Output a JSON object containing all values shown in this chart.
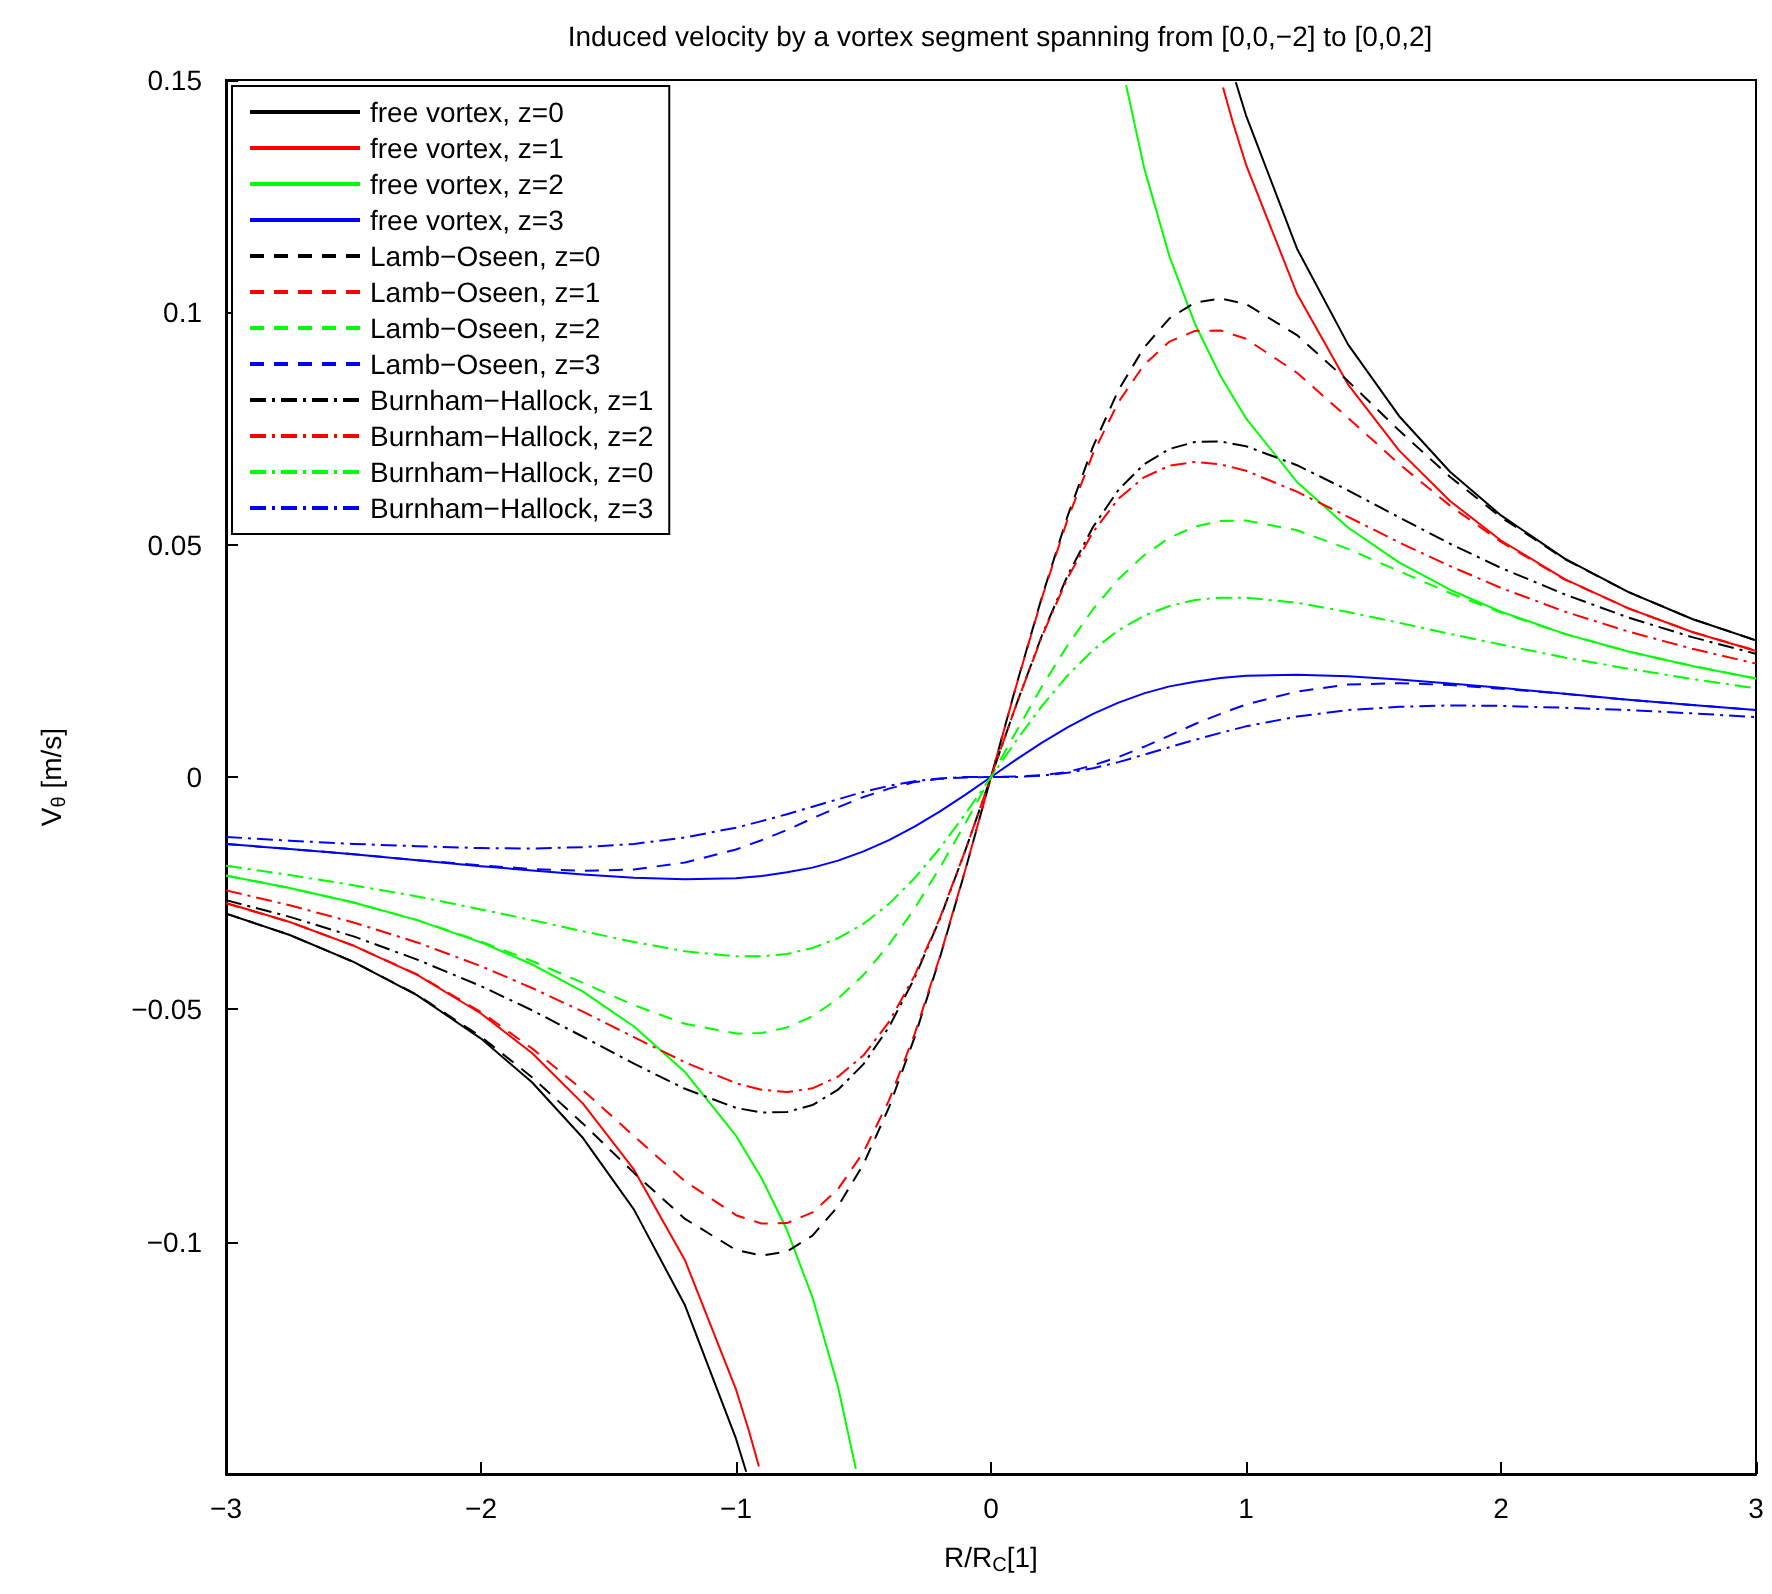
{
  "chart_data": {
    "type": "line",
    "title": "Induced velocity by a vortex segment spanning from [0,0,−2] to [0,0,2]",
    "xlabel": "R/R$_{C}$[1]",
    "ylabel": "V$_{θ}$ [m/s]",
    "xlim": [
      -3,
      3
    ],
    "xticks": [
      -3,
      -2,
      -1,
      0,
      1,
      2,
      3
    ],
    "ylim": [
      -0.15,
      0.15
    ],
    "yticks": [
      -0.1,
      -0.05,
      0,
      0.05,
      0.1,
      0.15
    ],
    "grid": false,
    "legend": "top left",
    "marker": "none",
    "x": [
      -3,
      -2.75,
      -2.5,
      -2.25,
      -2,
      -1.8,
      -1.6,
      -1.4,
      -1.2,
      -1,
      -0.9,
      -0.8,
      -0.7,
      -0.6,
      -0.5,
      -0.4,
      -0.3,
      -0.2,
      -0.1,
      0,
      0.1,
      0.2,
      0.3,
      0.4,
      0.5,
      0.6,
      0.7,
      0.8,
      0.9,
      1,
      1.2,
      1.4,
      1.6,
      1.8,
      2,
      2.25,
      2.5,
      2.75,
      3
    ],
    "series": [
      {
        "name": "free vortex, z=0",
        "color": "#000000",
        "line_style": "solid",
        "x": [
          -3,
          -2.75,
          -2.5,
          -2.25,
          -2,
          -1.8,
          -1.6,
          -1.4,
          -1.2,
          -1,
          -0.96,
          0,
          0.96,
          1,
          1.2,
          1.4,
          1.6,
          1.8,
          2,
          2.25,
          2.5,
          2.75,
          3
        ],
        "values": [
          -0.0294,
          -0.034,
          -0.0398,
          -0.047,
          -0.0563,
          -0.0657,
          -0.0777,
          -0.0931,
          -0.1137,
          -0.1424,
          -0.1495,
          null,
          0.1495,
          0.1424,
          0.1137,
          0.0931,
          0.0777,
          0.0657,
          0.0563,
          0.047,
          0.0398,
          0.034,
          0.0294
        ]
      },
      {
        "name": "free vortex, z=1",
        "color": "#ff0000",
        "line_style": "solid",
        "x": [
          -3,
          -2.75,
          -2.5,
          -2.25,
          -2,
          -1.8,
          -1.6,
          -1.4,
          -1.2,
          -1,
          -0.95,
          -0.91,
          0,
          0.91,
          0.95,
          1,
          1.2,
          1.4,
          1.6,
          1.8,
          2,
          2.25,
          2.5,
          2.75,
          3
        ],
        "values": [
          -0.0271,
          -0.0312,
          -0.0363,
          -0.0426,
          -0.0509,
          -0.0594,
          -0.0703,
          -0.0845,
          -0.104,
          -0.1318,
          -0.1406,
          -0.1484,
          null,
          0.1484,
          0.1406,
          0.1318,
          0.104,
          0.0845,
          0.0703,
          0.0594,
          0.0509,
          0.0426,
          0.0363,
          0.0312,
          0.0271
        ]
      },
      {
        "name": "free vortex, z=2",
        "color": "#00ff00",
        "line_style": "solid",
        "x": [
          -3,
          -2.75,
          -2.5,
          -2.25,
          -2,
          -1.8,
          -1.6,
          -1.4,
          -1.2,
          -1,
          -0.9,
          -0.8,
          -0.7,
          -0.6,
          -0.53,
          0,
          0.53,
          0.6,
          0.7,
          0.8,
          0.9,
          1,
          1.2,
          1.4,
          1.6,
          1.8,
          2,
          2.25,
          2.5,
          2.75,
          3
        ],
        "values": [
          -0.0212,
          -0.0239,
          -0.027,
          -0.0308,
          -0.0356,
          -0.0403,
          -0.0462,
          -0.0537,
          -0.0635,
          -0.0772,
          -0.0863,
          -0.0975,
          -0.112,
          -0.1312,
          -0.1489,
          null,
          0.1489,
          0.1312,
          0.112,
          0.0975,
          0.0863,
          0.0772,
          0.0635,
          0.0537,
          0.0462,
          0.0403,
          0.0356,
          0.0308,
          0.027,
          0.0239,
          0.0212
        ]
      },
      {
        "name": "free vortex, z=3",
        "color": "#0000ff",
        "line_style": "solid",
        "values": [
          -0.0144,
          -0.0155,
          -0.0166,
          -0.0179,
          -0.0192,
          -0.0201,
          -0.021,
          -0.0217,
          -0.022,
          -0.0218,
          -0.0213,
          -0.0205,
          -0.0195,
          -0.018,
          -0.016,
          -0.0136,
          -0.0107,
          -0.0074,
          -0.0038,
          0,
          0.0038,
          0.0074,
          0.0107,
          0.0136,
          0.016,
          0.018,
          0.0195,
          0.0205,
          0.0213,
          0.0218,
          0.022,
          0.0217,
          0.021,
          0.0201,
          0.0192,
          0.0179,
          0.0166,
          0.0155,
          0.0144
        ]
      },
      {
        "name": "Lamb−Oseen, z=0",
        "color": "#000000",
        "line_style": "dashed",
        "values": [
          -0.0294,
          -0.034,
          -0.0398,
          -0.0469,
          -0.0559,
          -0.0646,
          -0.0746,
          -0.0852,
          -0.0951,
          -0.1018,
          -0.103,
          -0.1021,
          -0.0987,
          -0.0924,
          -0.0833,
          -0.0711,
          -0.0561,
          -0.0388,
          -0.0199,
          0,
          0.0199,
          0.0388,
          0.0561,
          0.0711,
          0.0833,
          0.0924,
          0.0987,
          0.1021,
          0.103,
          0.1018,
          0.0951,
          0.0852,
          0.0746,
          0.0646,
          0.0559,
          0.0469,
          0.0398,
          0.034,
          0.0294
        ]
      },
      {
        "name": "Lamb−Oseen, z=1",
        "color": "#ff0000",
        "line_style": "dashed",
        "values": [
          -0.0272,
          -0.0312,
          -0.0363,
          -0.0425,
          -0.0506,
          -0.0584,
          -0.0674,
          -0.0773,
          -0.087,
          -0.0943,
          -0.0961,
          -0.096,
          -0.0937,
          -0.0887,
          -0.0807,
          -0.0696,
          -0.0554,
          -0.0386,
          -0.0198,
          0,
          0.0198,
          0.0386,
          0.0554,
          0.0696,
          0.0807,
          0.0887,
          0.0937,
          0.096,
          0.0961,
          0.0943,
          0.087,
          0.0773,
          0.0674,
          0.0584,
          0.0506,
          0.0425,
          0.0363,
          0.0312,
          0.0272
        ]
      },
      {
        "name": "Lamb−Oseen, z=2",
        "color": "#00ff00",
        "line_style": "dashed",
        "values": [
          -0.0212,
          -0.0239,
          -0.027,
          -0.0308,
          -0.0354,
          -0.0396,
          -0.0443,
          -0.0491,
          -0.0531,
          -0.0552,
          -0.0551,
          -0.0539,
          -0.0515,
          -0.0477,
          -0.0426,
          -0.0361,
          -0.0283,
          -0.0195,
          -0.0099,
          0,
          0.0099,
          0.0195,
          0.0283,
          0.0361,
          0.0426,
          0.0477,
          0.0515,
          0.0539,
          0.0551,
          0.0552,
          0.0531,
          0.0491,
          0.0443,
          0.0396,
          0.0354,
          0.0308,
          0.027,
          0.0239,
          0.0212
        ]
      },
      {
        "name": "Lamb−Oseen, z=3",
        "color": "#0000ff",
        "line_style": "dashed",
        "values": [
          -0.0144,
          -0.0155,
          -0.0166,
          -0.0179,
          -0.019,
          -0.0198,
          -0.0202,
          -0.0199,
          -0.0184,
          -0.0156,
          -0.0136,
          -0.0114,
          -0.0089,
          -0.0065,
          -0.0043,
          -0.0025,
          -0.0011,
          -0.0004,
          -0.0001,
          0,
          0.0001,
          0.0004,
          0.0011,
          0.0025,
          0.0043,
          0.0065,
          0.0089,
          0.0114,
          0.0136,
          0.0156,
          0.0184,
          0.0199,
          0.0202,
          0.0198,
          0.019,
          0.0179,
          0.0166,
          0.0155,
          0.0144
        ]
      },
      {
        "name": "Burnham−Hallock, z=1",
        "color": "#000000",
        "line_style": "dashdot",
        "values": [
          -0.0265,
          -0.0301,
          -0.0343,
          -0.0393,
          -0.045,
          -0.0502,
          -0.0559,
          -0.0617,
          -0.0671,
          -0.0712,
          -0.0722,
          -0.0721,
          -0.0706,
          -0.0673,
          -0.0618,
          -0.0538,
          -0.0433,
          -0.0305,
          -0.0157,
          0,
          0.0157,
          0.0305,
          0.0433,
          0.0538,
          0.0618,
          0.0673,
          0.0706,
          0.0721,
          0.0722,
          0.0712,
          0.0671,
          0.0617,
          0.0559,
          0.0502,
          0.045,
          0.0393,
          0.0343,
          0.0301,
          0.0265
        ]
      },
      {
        "name": "Burnham−Hallock, z=2",
        "color": "#ff0000",
        "line_style": "dashdot",
        "values": [
          -0.0244,
          -0.0276,
          -0.0313,
          -0.0356,
          -0.0407,
          -0.0454,
          -0.0505,
          -0.056,
          -0.0614,
          -0.0659,
          -0.0673,
          -0.0678,
          -0.067,
          -0.0645,
          -0.0599,
          -0.0527,
          -0.0428,
          -0.0303,
          -0.0157,
          0,
          0.0157,
          0.0303,
          0.0428,
          0.0527,
          0.0599,
          0.0645,
          0.067,
          0.0678,
          0.0673,
          0.0659,
          0.0614,
          0.056,
          0.0505,
          0.0454,
          0.0407,
          0.0356,
          0.0313,
          0.0276,
          0.0244
        ]
      },
      {
        "name": "Burnham−Hallock, z=0",
        "color": "#00ff00",
        "line_style": "dashdot",
        "values": [
          -0.0191,
          -0.0211,
          -0.0233,
          -0.0257,
          -0.0285,
          -0.0308,
          -0.0332,
          -0.0355,
          -0.0375,
          -0.0386,
          -0.0386,
          -0.0381,
          -0.0368,
          -0.0347,
          -0.0316,
          -0.0273,
          -0.0218,
          -0.0153,
          -0.0079,
          0,
          0.0079,
          0.0153,
          0.0218,
          0.0273,
          0.0316,
          0.0347,
          0.0368,
          0.0381,
          0.0386,
          0.0386,
          0.0375,
          0.0355,
          0.0332,
          0.0308,
          0.0285,
          0.0257,
          0.0233,
          0.0211,
          0.0191
        ]
      },
      {
        "name": "Burnham−Hallock, z=3",
        "color": "#0000ff",
        "line_style": "dashdot",
        "values": [
          -0.0129,
          -0.0137,
          -0.0144,
          -0.0149,
          -0.0153,
          -0.0154,
          -0.0151,
          -0.0144,
          -0.013,
          -0.0109,
          -0.0095,
          -0.008,
          -0.0064,
          -0.0048,
          -0.0032,
          -0.0019,
          -0.0009,
          -0.0003,
          0,
          0,
          0,
          0.0003,
          0.0009,
          0.0019,
          0.0032,
          0.0048,
          0.0064,
          0.008,
          0.0095,
          0.0109,
          0.013,
          0.0144,
          0.0151,
          0.0154,
          0.0153,
          0.0149,
          0.0144,
          0.0137,
          0.0129
        ]
      }
    ]
  }
}
